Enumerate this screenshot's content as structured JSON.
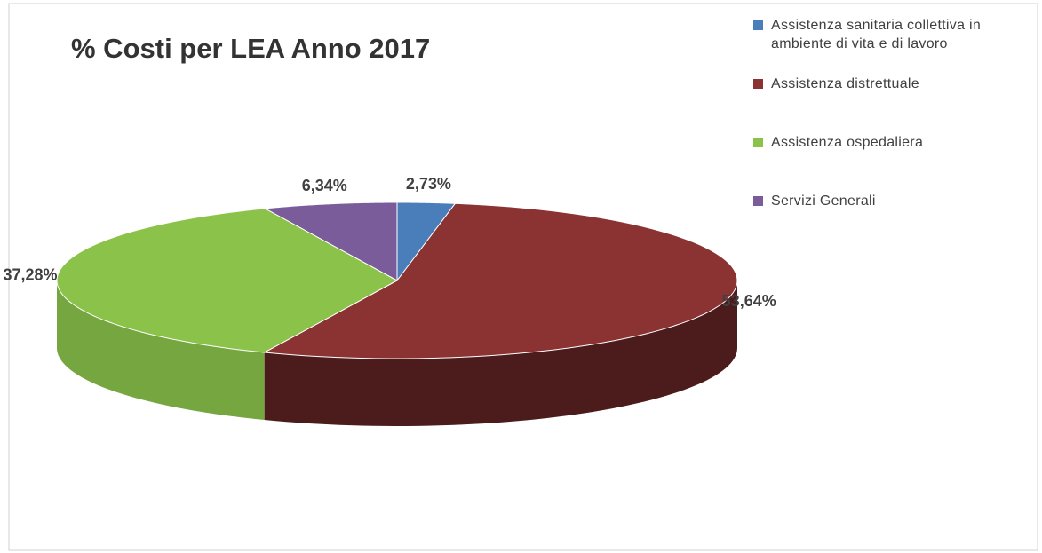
{
  "chart_data": {
    "type": "pie3d",
    "title": "% Costi per LEA Anno 2017",
    "categories": [
      "Assistenza sanitaria collettiva in ambiente di vita e di lavoro",
      "Assistenza distrettuale",
      "Assistenza ospedaliera",
      "Servizi Generali"
    ],
    "values": [
      2.73,
      53.64,
      37.28,
      6.34
    ],
    "value_labels": [
      "2,73%",
      "53,64%",
      "37,28%",
      "6,34%"
    ],
    "colors": [
      "#4a7ebb",
      "#8b3232",
      "#8bc34a",
      "#7a5c9a"
    ],
    "legend": "right"
  }
}
